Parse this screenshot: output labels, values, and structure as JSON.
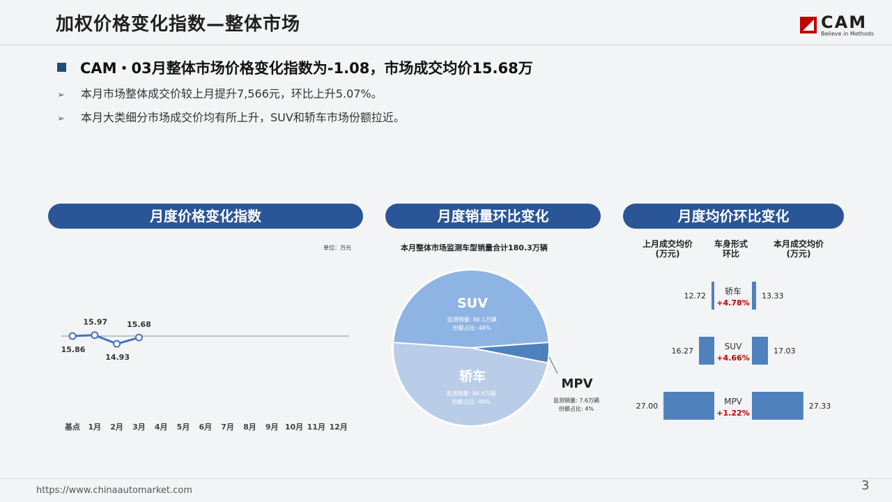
{
  "title": "加权价格变化指数—整体市场",
  "logo": {
    "text": "CAM",
    "tagline": "Believe in Methods"
  },
  "headline": "CAM・03月整体市场价格变化指数为-1.08，市场成交均价15.68万",
  "bullets": [
    "本月市场整体成交价较上月提升7,566元，环比上升5.07%。",
    "本月大类细分市场成交价均有所上升，SUV和轿车市场份额拉近。"
  ],
  "bullet_marker": "➢",
  "sections": {
    "index": "月度价格变化指数",
    "volume": "月度销量环比变化",
    "price": "月度均价环比变化"
  },
  "unit_note": "单位：万元",
  "pie_caption": "本月整体市场监测车型销量合计180.3万辆",
  "price_columns": {
    "last": "上月成交均价\n(万元)",
    "segment": "车身形式\n环比",
    "current": "本月成交均价\n(万元)"
  },
  "footer": {
    "url": "https://www.chinaautomarket.com",
    "page": "3"
  },
  "colors": {
    "pill": "#2a5597",
    "accent_red": "#c00000",
    "line": "#4472c4",
    "bar": "#4f81bd"
  },
  "chart_data": [
    {
      "type": "line",
      "categories": [
        "基点",
        "1月",
        "2月",
        "3月",
        "4月",
        "5月",
        "6月",
        "7月",
        "8月",
        "9月",
        "10月",
        "11月",
        "12月"
      ],
      "values": [
        15.86,
        15.97,
        14.93,
        15.68,
        null,
        null,
        null,
        null,
        null,
        null,
        null,
        null,
        null
      ],
      "unit": "万元"
    },
    {
      "type": "pie",
      "slices": [
        {
          "name": "SUV",
          "volume_label": "监测销量: 86.1万辆",
          "share_label": "份额占比: 48%",
          "value": 86.1,
          "share": 48,
          "color": "#8eb4e3"
        },
        {
          "name": "MPV",
          "volume_label": "监测销量: 7.6万辆",
          "share_label": "份额占比: 4%",
          "value": 7.6,
          "share": 4,
          "color": "#4f81bd"
        },
        {
          "name": "轿车",
          "volume_label": "监测销量: 86.6万辆",
          "share_label": "份额占比: 48%",
          "value": 86.6,
          "share": 48,
          "color": "#b9cde8"
        }
      ]
    },
    {
      "type": "bar",
      "rows": [
        {
          "name": "轿车",
          "last": 12.72,
          "current": 13.33,
          "change": "+4.78%",
          "last_label": "12.72",
          "current_label": "13.33"
        },
        {
          "name": "SUV",
          "last": 16.27,
          "current": 17.03,
          "change": "+4.66%",
          "last_label": "16.27",
          "current_label": "17.03"
        },
        {
          "name": "MPV",
          "last": 27.0,
          "current": 27.33,
          "change": "+1.22%",
          "last_label": "27.00",
          "current_label": "27.33"
        }
      ]
    }
  ]
}
